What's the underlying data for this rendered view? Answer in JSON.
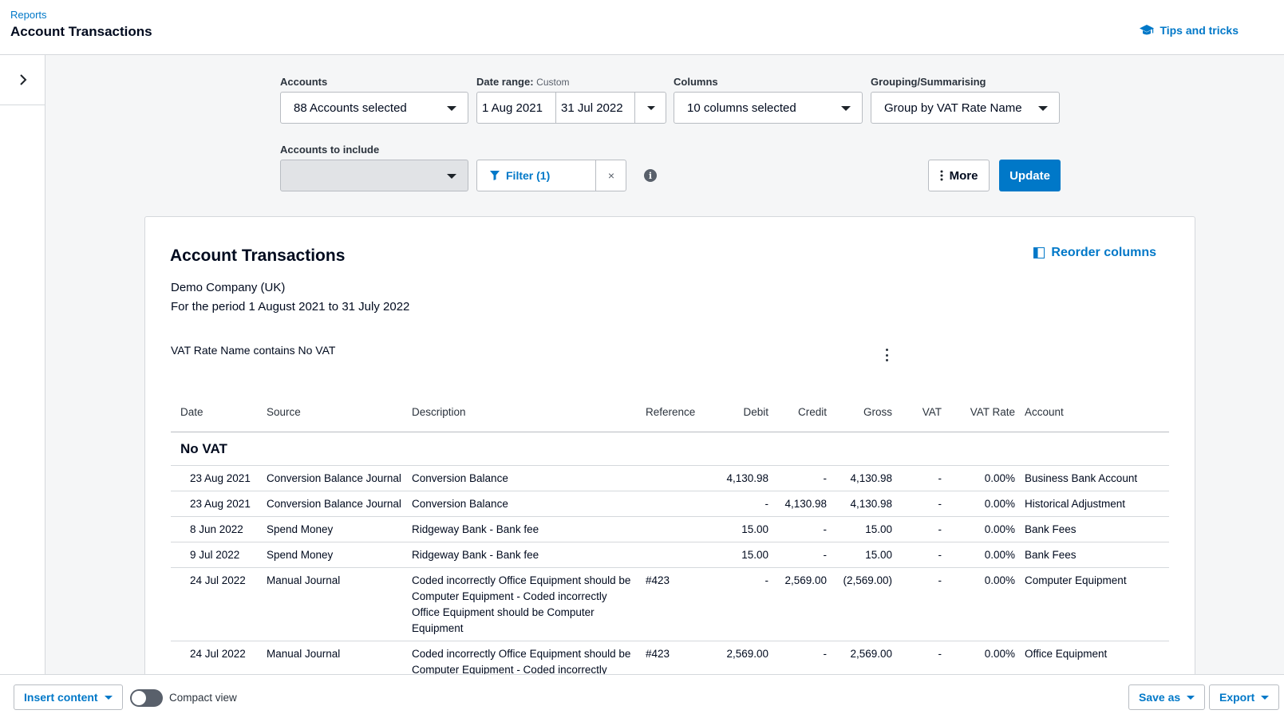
{
  "header": {
    "breadcrumb": "Reports",
    "title": "Account Transactions",
    "tips_label": "Tips and tricks"
  },
  "controls": {
    "accounts": {
      "label": "Accounts",
      "value": "88 Accounts selected"
    },
    "date_range": {
      "label": "Date range:",
      "mode": "Custom",
      "from": "1 Aug 2021",
      "to": "31 Jul 2022"
    },
    "columns": {
      "label": "Columns",
      "value": "10 columns selected"
    },
    "grouping": {
      "label": "Grouping/Summarising",
      "value": "Group by VAT Rate Name"
    },
    "accounts_to_include": {
      "label": "Accounts to include",
      "value": ""
    },
    "filter_label": "Filter (1)",
    "clear_symbol": "×",
    "more_label": "More",
    "update_label": "Update"
  },
  "report": {
    "title": "Account Transactions",
    "reorder_label": "Reorder columns",
    "company": "Demo Company (UK)",
    "period": "For the period 1 August 2021 to 31 July 2022",
    "filter_note": "VAT Rate Name contains No VAT",
    "columns": [
      "Date",
      "Source",
      "Description",
      "Reference",
      "Debit",
      "Credit",
      "Gross",
      "VAT",
      "VAT Rate",
      "Account"
    ],
    "group_name": "No VAT",
    "rows": [
      [
        "23 Aug 2021",
        "Conversion Balance Journal",
        "Conversion Balance",
        "",
        "4,130.98",
        "-",
        "4,130.98",
        "-",
        "0.00%",
        "Business Bank Account"
      ],
      [
        "23 Aug 2021",
        "Conversion Balance Journal",
        "Conversion Balance",
        "",
        "-",
        "4,130.98",
        "4,130.98",
        "-",
        "0.00%",
        "Historical Adjustment"
      ],
      [
        "8 Jun 2022",
        "Spend Money",
        "Ridgeway Bank - Bank fee",
        "",
        "15.00",
        "-",
        "15.00",
        "-",
        "0.00%",
        "Bank Fees"
      ],
      [
        "9 Jul 2022",
        "Spend Money",
        "Ridgeway Bank - Bank fee",
        "",
        "15.00",
        "-",
        "15.00",
        "-",
        "0.00%",
        "Bank Fees"
      ],
      [
        "24 Jul 2022",
        "Manual Journal",
        "Coded incorrectly Office Equipment should be Computer Equipment - Coded incorrectly Office Equipment should be Computer Equipment",
        "#423",
        "-",
        "2,569.00",
        "(2,569.00)",
        "-",
        "0.00%",
        "Computer Equipment"
      ],
      [
        "24 Jul 2022",
        "Manual Journal",
        "Coded incorrectly Office Equipment should be Computer Equipment - Coded incorrectly Computer Equipment should be Office",
        "#423",
        "2,569.00",
        "-",
        "2,569.00",
        "-",
        "0.00%",
        "Office Equipment"
      ]
    ]
  },
  "footer": {
    "insert_label": "Insert content",
    "compact_label": "Compact view",
    "compact_on": false,
    "save_label": "Save as",
    "export_label": "Export"
  },
  "colors": {
    "accent": "#0078c8",
    "text": "#000a1e",
    "background": "#f5f6f7"
  }
}
